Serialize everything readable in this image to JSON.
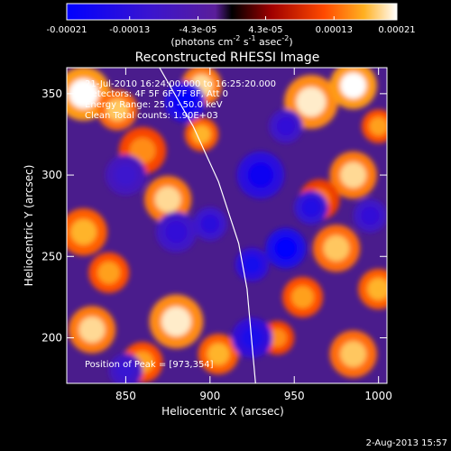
{
  "colorbar": {
    "ticks": [
      {
        "label": "-0.00021",
        "value": -0.00021
      },
      {
        "label": "-0.00013",
        "value": -0.00013
      },
      {
        "label": "-4.3e-05",
        "value": -4.3e-05
      },
      {
        "label": "4.3e-05",
        "value": 4.3e-05
      },
      {
        "label": "0.00013",
        "value": 0.00013
      },
      {
        "label": "0.00021",
        "value": 0.00021
      }
    ],
    "range": [
      -0.00021,
      0.00021
    ],
    "unit_main": "(photons cm",
    "unit_exp1": "-2",
    "unit_mid": " s",
    "unit_exp2": "-1",
    "unit_tail": " asec",
    "unit_exp3": "-2",
    "unit_close": ")"
  },
  "chart_data": {
    "type": "heatmap",
    "title": "Reconstructed RHESSI Image",
    "xlabel": "Heliocentric X (arcsec)",
    "ylabel": "Heliocentric Y (arcsec)",
    "xlim": [
      815,
      1005
    ],
    "ylim": [
      172,
      366
    ],
    "xticks": [
      850,
      900,
      950,
      1000
    ],
    "yticks": [
      200,
      250,
      300,
      350
    ],
    "grid": false,
    "info_lines": [
      "21-Jul-2010 16:24:00.000 to 16:25:20.000",
      "Detectors: 4F 5F 6F 7F 8F, Att 0",
      "Energy Range: 25.0 - 50.0 keV",
      "Clean     Total counts: 1.90E+03"
    ],
    "peak_label": "Position of Peak = [973,354]",
    "peak": {
      "x": 973,
      "y": 354
    },
    "limb_curve": [
      [
        870,
        366
      ],
      [
        890,
        330
      ],
      [
        905,
        296
      ],
      [
        917,
        258
      ],
      [
        922,
        230
      ],
      [
        927,
        172
      ]
    ],
    "blobs": [
      {
        "x": 825,
        "y": 350,
        "v": 0.00021,
        "r": 16
      },
      {
        "x": 845,
        "y": 340,
        "v": 0.00018,
        "r": 12
      },
      {
        "x": 895,
        "y": 355,
        "v": 0.00019,
        "r": 12
      },
      {
        "x": 960,
        "y": 345,
        "v": 0.0002,
        "r": 16
      },
      {
        "x": 985,
        "y": 355,
        "v": 0.00021,
        "r": 14
      },
      {
        "x": 860,
        "y": 315,
        "v": 0.00015,
        "r": 14
      },
      {
        "x": 895,
        "y": 325,
        "v": 0.00017,
        "r": 10
      },
      {
        "x": 985,
        "y": 300,
        "v": 0.00019,
        "r": 14
      },
      {
        "x": 1000,
        "y": 330,
        "v": 0.00016,
        "r": 10
      },
      {
        "x": 875,
        "y": 285,
        "v": 0.00019,
        "r": 14
      },
      {
        "x": 825,
        "y": 265,
        "v": 0.00017,
        "r": 14
      },
      {
        "x": 840,
        "y": 240,
        "v": 0.00016,
        "r": 12
      },
      {
        "x": 975,
        "y": 255,
        "v": 0.00018,
        "r": 14
      },
      {
        "x": 955,
        "y": 225,
        "v": 0.00016,
        "r": 12
      },
      {
        "x": 1000,
        "y": 230,
        "v": 0.00017,
        "r": 12
      },
      {
        "x": 830,
        "y": 205,
        "v": 0.00019,
        "r": 14
      },
      {
        "x": 880,
        "y": 210,
        "v": 0.0002,
        "r": 16
      },
      {
        "x": 860,
        "y": 185,
        "v": 0.00016,
        "r": 12
      },
      {
        "x": 905,
        "y": 190,
        "v": 0.00017,
        "r": 12
      },
      {
        "x": 940,
        "y": 200,
        "v": 0.00015,
        "r": 10
      },
      {
        "x": 985,
        "y": 190,
        "v": 0.00018,
        "r": 14
      },
      {
        "x": 965,
        "y": 285,
        "v": 0.00014,
        "r": 12
      },
      {
        "x": 885,
        "y": 345,
        "v": -0.0002,
        "r": 12
      },
      {
        "x": 930,
        "y": 300,
        "v": -0.00018,
        "r": 14
      },
      {
        "x": 945,
        "y": 255,
        "v": -0.00021,
        "r": 12
      },
      {
        "x": 925,
        "y": 245,
        "v": -0.00017,
        "r": 10
      },
      {
        "x": 925,
        "y": 200,
        "v": -0.00016,
        "r": 12
      },
      {
        "x": 960,
        "y": 280,
        "v": -0.00015,
        "r": 10
      },
      {
        "x": 880,
        "y": 265,
        "v": -0.00012,
        "r": 12
      },
      {
        "x": 850,
        "y": 300,
        "v": -0.0001,
        "r": 12
      },
      {
        "x": 900,
        "y": 270,
        "v": -0.00013,
        "r": 10
      },
      {
        "x": 945,
        "y": 330,
        "v": -0.00012,
        "r": 10
      },
      {
        "x": 850,
        "y": 180,
        "v": -0.00011,
        "r": 10
      },
      {
        "x": 995,
        "y": 275,
        "v": -0.00012,
        "r": 10
      }
    ]
  },
  "footer": {
    "timestamp": "2-Aug-2013 15:57"
  }
}
